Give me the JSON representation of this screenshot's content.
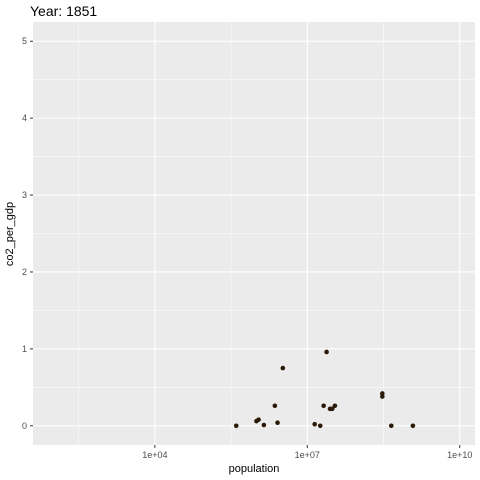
{
  "chart_data": {
    "type": "scatter",
    "title": "Year: 1851",
    "xlabel": "population",
    "ylabel": "co2_per_gdp",
    "x_scale": "log10",
    "xlim": [
      40,
      20000000000
    ],
    "ylim": [
      -0.25,
      5.25
    ],
    "x_ticks": [
      {
        "value": 10000,
        "label": "1e+04"
      },
      {
        "value": 10000000,
        "label": "1e+07"
      },
      {
        "value": 10000000000,
        "label": "1e+10"
      }
    ],
    "y_ticks": [
      {
        "value": 0,
        "label": "0"
      },
      {
        "value": 1,
        "label": "1"
      },
      {
        "value": 2,
        "label": "2"
      },
      {
        "value": 3,
        "label": "3"
      },
      {
        "value": 4,
        "label": "4"
      },
      {
        "value": 5,
        "label": "5"
      }
    ],
    "grid": true,
    "point_color": "#2b1a08",
    "panel_color": "#ebebeb",
    "grid_color": "#ffffff",
    "points": [
      {
        "x": 400000,
        "y": 0.0
      },
      {
        "x": 1000000,
        "y": 0.06
      },
      {
        "x": 1100000,
        "y": 0.08
      },
      {
        "x": 1400000,
        "y": 0.01
      },
      {
        "x": 2300000,
        "y": 0.26
      },
      {
        "x": 2600000,
        "y": 0.04
      },
      {
        "x": 3300000,
        "y": 0.75
      },
      {
        "x": 14000000,
        "y": 0.02
      },
      {
        "x": 18000000,
        "y": 0.0
      },
      {
        "x": 21000000,
        "y": 0.26
      },
      {
        "x": 24000000,
        "y": 0.96
      },
      {
        "x": 28000000,
        "y": 0.22
      },
      {
        "x": 31000000,
        "y": 0.22
      },
      {
        "x": 35000000,
        "y": 0.26
      },
      {
        "x": 300000000,
        "y": 0.42
      },
      {
        "x": 300000000,
        "y": 0.38
      },
      {
        "x": 450000000,
        "y": 0.0
      },
      {
        "x": 1200000000,
        "y": 0.0
      }
    ]
  }
}
